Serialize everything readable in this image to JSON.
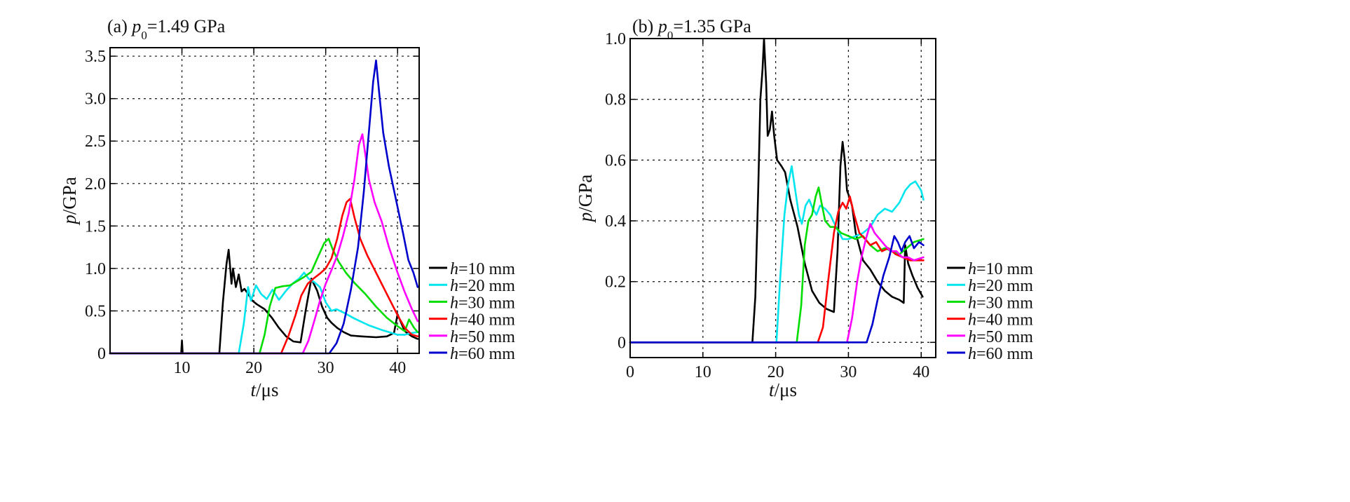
{
  "chart_data": [
    {
      "type": "line",
      "title": {
        "prefix": "(a) ",
        "var": "p",
        "sub": "0",
        "rest": "=1.49 GPa"
      },
      "xlabel": {
        "var": "t",
        "unit": "/μs"
      },
      "ylabel": {
        "var": "p",
        "unit": "/GPa"
      },
      "xlim": [
        0,
        43
      ],
      "ylim": [
        0,
        3.6
      ],
      "xticks": [
        10,
        20,
        30,
        40
      ],
      "yticks": [
        0,
        0.5,
        1.0,
        1.5,
        2.0,
        2.5,
        3.0,
        3.5
      ],
      "ytick_labels": [
        "0",
        "0.5",
        "1.0",
        "1.5",
        "2.0",
        "2.5",
        "3.0",
        "3.5"
      ],
      "xtick_labels": [
        "10",
        "20",
        "30",
        "40"
      ],
      "grid": true,
      "legend": "right",
      "series": [
        {
          "name": "h=10 mm",
          "label_var": "h",
          "label_rest": "=10 mm",
          "color": "#000000",
          "x": [
            0,
            9.9,
            10,
            10.1,
            15.2,
            15.7,
            16.2,
            16.5,
            16.9,
            17.1,
            17.5,
            17.9,
            18.3,
            18.7,
            19.2,
            19.8,
            20.4,
            21.5,
            22.5,
            23.5,
            24.5,
            25.5,
            26.5,
            27.2,
            28,
            28.8,
            29.5,
            30.2,
            30.8,
            31.6,
            32.5,
            33.5,
            35,
            37,
            38.5,
            39.5,
            40,
            40.4,
            41,
            42,
            42.8
          ],
          "y": [
            0,
            0,
            0.15,
            0,
            0,
            0.6,
            1.05,
            1.22,
            0.82,
            1.0,
            0.78,
            0.93,
            0.73,
            0.76,
            0.7,
            0.62,
            0.58,
            0.52,
            0.42,
            0.3,
            0.2,
            0.14,
            0.13,
            0.5,
            0.88,
            0.74,
            0.55,
            0.42,
            0.36,
            0.3,
            0.25,
            0.21,
            0.2,
            0.19,
            0.2,
            0.24,
            0.46,
            0.38,
            0.26,
            0.2,
            0.17
          ]
        },
        {
          "name": "h=20 mm",
          "label_var": "h",
          "label_rest": "=20 mm",
          "color": "#00e5ee",
          "x": [
            0,
            17.9,
            18.6,
            19.2,
            19.6,
            20.3,
            21,
            21.8,
            22.6,
            23.5,
            24.5,
            25.5,
            26.3,
            27,
            27.6,
            28.4,
            29.2,
            30,
            30.8,
            31.5,
            32.5,
            34,
            36,
            38,
            40,
            41,
            42,
            42.8
          ],
          "y": [
            0,
            0,
            0.35,
            0.78,
            0.62,
            0.8,
            0.7,
            0.64,
            0.75,
            0.63,
            0.74,
            0.83,
            0.88,
            0.95,
            0.88,
            0.84,
            0.78,
            0.6,
            0.5,
            0.52,
            0.48,
            0.41,
            0.33,
            0.27,
            0.22,
            0.22,
            0.24,
            0.25
          ]
        },
        {
          "name": "h=30 mm",
          "label_var": "h",
          "label_rest": "=30 mm",
          "color": "#00dd00",
          "x": [
            0,
            20.8,
            21.5,
            22.2,
            23,
            24,
            25,
            26,
            27,
            28,
            29,
            29.8,
            30.4,
            31,
            31.8,
            32.8,
            34,
            35.5,
            37,
            38.5,
            40,
            41,
            41.6,
            42.3,
            42.8
          ],
          "y": [
            0,
            0,
            0.22,
            0.55,
            0.77,
            0.79,
            0.8,
            0.85,
            0.9,
            0.96,
            1.15,
            1.3,
            1.35,
            1.22,
            1.08,
            0.95,
            0.83,
            0.7,
            0.55,
            0.42,
            0.32,
            0.26,
            0.4,
            0.3,
            0.25
          ]
        },
        {
          "name": "h=40 mm",
          "label_var": "h",
          "label_rest": "=40 mm",
          "color": "#ff0000",
          "x": [
            0,
            23.8,
            24.8,
            25.8,
            26.6,
            27.5,
            28.3,
            29.2,
            30,
            30.8,
            31.6,
            32.3,
            32.9,
            33.4,
            34,
            34.8,
            35.8,
            37,
            38.5,
            40,
            41,
            42,
            42.8
          ],
          "y": [
            0,
            0,
            0.2,
            0.45,
            0.68,
            0.82,
            0.88,
            0.94,
            1.0,
            1.12,
            1.35,
            1.62,
            1.78,
            1.82,
            1.6,
            1.35,
            1.15,
            0.95,
            0.7,
            0.45,
            0.3,
            0.22,
            0.2
          ]
        },
        {
          "name": "h=50 mm",
          "label_var": "h",
          "label_rest": "=50 mm",
          "color": "#ff00ff",
          "x": [
            0,
            26.8,
            27.6,
            28.4,
            29.2,
            30,
            30.8,
            31.6,
            32.4,
            33.2,
            34,
            34.6,
            35.1,
            35.5,
            36,
            36.8,
            37.8,
            38.8,
            40,
            41,
            42,
            42.8
          ],
          "y": [
            0,
            0,
            0.15,
            0.38,
            0.62,
            0.82,
            0.98,
            1.15,
            1.38,
            1.65,
            2.05,
            2.45,
            2.58,
            2.35,
            2.05,
            1.78,
            1.55,
            1.25,
            0.95,
            0.72,
            0.52,
            0.38
          ]
        },
        {
          "name": "h=60 mm",
          "label_var": "h",
          "label_rest": "=60 mm",
          "color": "#0000cc",
          "x": [
            0,
            30.5,
            31.5,
            32.5,
            33.5,
            34.5,
            35.3,
            36,
            36.6,
            37,
            37.4,
            38,
            38.8,
            39.8,
            40.8,
            41.5,
            42.2,
            42.8
          ],
          "y": [
            0,
            0,
            0.12,
            0.35,
            0.75,
            1.25,
            1.9,
            2.6,
            3.2,
            3.45,
            3.1,
            2.6,
            2.2,
            1.8,
            1.4,
            1.1,
            0.95,
            0.78
          ]
        }
      ]
    },
    {
      "type": "line",
      "title": {
        "prefix": "(b) ",
        "var": "p",
        "sub": "0",
        "rest": "=1.35 GPa"
      },
      "xlabel": {
        "var": "t",
        "unit": "/μs"
      },
      "ylabel": {
        "var": "p",
        "unit": "/GPa"
      },
      "xlim": [
        0,
        42
      ],
      "ylim": [
        -0.05,
        1.0
      ],
      "xticks": [
        0,
        10,
        20,
        30,
        40
      ],
      "yticks": [
        0,
        0.2,
        0.4,
        0.6,
        0.8,
        1.0
      ],
      "ytick_labels": [
        "0",
        "0.2",
        "0.4",
        "0.6",
        "0.8",
        "1.0"
      ],
      "xtick_labels": [
        "0",
        "10",
        "20",
        "30",
        "40"
      ],
      "grid": true,
      "legend": "right",
      "series": [
        {
          "name": "h=10 mm",
          "label_var": "h",
          "label_rest": "=10 mm",
          "color": "#000000",
          "x": [
            0,
            16.8,
            17.2,
            17.6,
            17.9,
            18.2,
            18.4,
            18.7,
            18.9,
            19.2,
            19.5,
            19.8,
            20.2,
            20.8,
            21.3,
            22,
            23,
            24,
            25,
            26,
            27,
            28,
            28.5,
            28.9,
            29.2,
            29.5,
            29.8,
            30.1,
            30.5,
            31,
            32,
            33,
            34,
            35,
            36,
            37,
            37.6,
            37.8,
            38.2,
            38.8,
            39.5,
            40.2
          ],
          "y": [
            0,
            0,
            0.15,
            0.5,
            0.8,
            0.9,
            1.0,
            0.85,
            0.68,
            0.7,
            0.76,
            0.68,
            0.6,
            0.58,
            0.56,
            0.47,
            0.38,
            0.26,
            0.17,
            0.13,
            0.11,
            0.1,
            0.3,
            0.58,
            0.66,
            0.6,
            0.5,
            0.48,
            0.45,
            0.36,
            0.27,
            0.24,
            0.2,
            0.17,
            0.15,
            0.14,
            0.13,
            0.32,
            0.26,
            0.22,
            0.18,
            0.15
          ]
        },
        {
          "name": "h=20 mm",
          "label_var": "h",
          "label_rest": "=20 mm",
          "color": "#00e5ee",
          "x": [
            0,
            20.1,
            20.6,
            21.2,
            21.7,
            22.2,
            22.7,
            23.2,
            23.6,
            24.1,
            24.6,
            25.1,
            25.6,
            26.1,
            26.8,
            27.5,
            28.3,
            29.2,
            30,
            31,
            32,
            33,
            34,
            35,
            36,
            37,
            37.8,
            38.5,
            39.2,
            40,
            40.3
          ],
          "y": [
            0,
            0,
            0.2,
            0.42,
            0.52,
            0.58,
            0.5,
            0.42,
            0.39,
            0.45,
            0.47,
            0.44,
            0.42,
            0.45,
            0.44,
            0.42,
            0.38,
            0.34,
            0.34,
            0.35,
            0.36,
            0.38,
            0.42,
            0.44,
            0.43,
            0.46,
            0.5,
            0.52,
            0.53,
            0.5,
            0.47
          ]
        },
        {
          "name": "h=30 mm",
          "label_var": "h",
          "label_rest": "=30 mm",
          "color": "#00dd00",
          "x": [
            0,
            22.9,
            23.5,
            24,
            24.5,
            25,
            25.5,
            25.9,
            26.3,
            26.8,
            27.5,
            28.2,
            29,
            30,
            31,
            32,
            33,
            34,
            35,
            36,
            37,
            38,
            39,
            40.3
          ],
          "y": [
            0,
            0,
            0.12,
            0.32,
            0.4,
            0.42,
            0.48,
            0.51,
            0.46,
            0.4,
            0.38,
            0.38,
            0.36,
            0.35,
            0.34,
            0.35,
            0.32,
            0.3,
            0.31,
            0.3,
            0.29,
            0.31,
            0.33,
            0.34
          ]
        },
        {
          "name": "h=40 mm",
          "label_var": "h",
          "label_rest": "=40 mm",
          "color": "#ff0000",
          "x": [
            0,
            25.8,
            26.5,
            27.2,
            28,
            28.6,
            29.2,
            29.7,
            30.2,
            30.8,
            31.5,
            32.3,
            33,
            33.8,
            34.6,
            35.5,
            36.5,
            37.5,
            38.5,
            39.5,
            40.3
          ],
          "y": [
            0,
            0,
            0.05,
            0.2,
            0.36,
            0.43,
            0.46,
            0.44,
            0.48,
            0.42,
            0.36,
            0.34,
            0.32,
            0.33,
            0.3,
            0.31,
            0.29,
            0.28,
            0.27,
            0.27,
            0.27
          ]
        },
        {
          "name": "h=50 mm",
          "label_var": "h",
          "label_rest": "=50 mm",
          "color": "#ff00ff",
          "x": [
            0,
            29.8,
            30.5,
            31.2,
            31.8,
            32.4,
            33,
            33.6,
            34.3,
            35,
            35.8,
            36.6,
            37.4,
            38.2,
            39,
            40.3
          ],
          "y": [
            0,
            0,
            0.08,
            0.2,
            0.28,
            0.34,
            0.39,
            0.36,
            0.34,
            0.32,
            0.3,
            0.3,
            0.28,
            0.28,
            0.27,
            0.28
          ]
        },
        {
          "name": "h=60 mm",
          "label_var": "h",
          "label_rest": "=60 mm",
          "color": "#0000cc",
          "x": [
            0,
            32.5,
            33.3,
            34,
            34.8,
            35.6,
            36.3,
            36.8,
            37.3,
            37.8,
            38.4,
            39,
            39.7,
            40.3
          ],
          "y": [
            0,
            0,
            0.06,
            0.14,
            0.22,
            0.28,
            0.35,
            0.33,
            0.3,
            0.33,
            0.35,
            0.31,
            0.33,
            0.32
          ]
        }
      ]
    }
  ]
}
